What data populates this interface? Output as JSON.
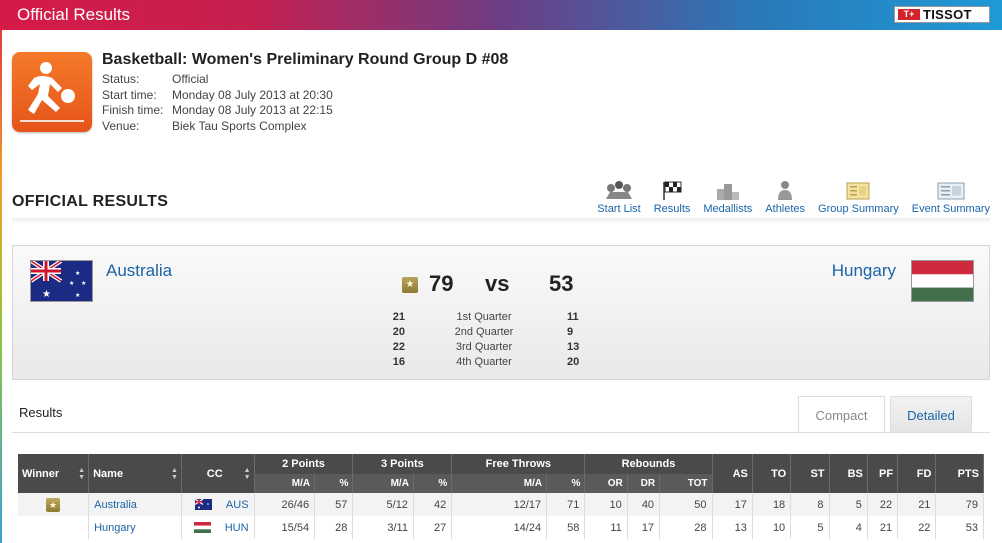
{
  "banner": {
    "title": "Official Results",
    "sponsor": "TISSOT",
    "sponsor_mark": "T+"
  },
  "event": {
    "title": "Basketball: Women's Preliminary Round Group D #08",
    "meta": [
      {
        "label": "Status:",
        "value": "Official"
      },
      {
        "label": "Start time:",
        "value": "Monday 08 July 2013 at 20:30"
      },
      {
        "label": "Finish time:",
        "value": "Monday 08 July 2013 at 22:15"
      },
      {
        "label": "Venue:",
        "value": "Biek Tau Sports Complex"
      }
    ]
  },
  "section": {
    "title": "OFFICIAL RESULTS",
    "nav": [
      {
        "label": "Start List",
        "icon": "start-list-icon"
      },
      {
        "label": "Results",
        "icon": "checkered-flag-icon"
      },
      {
        "label": "Medallists",
        "icon": "podium-icon"
      },
      {
        "label": "Athletes",
        "icon": "athlete-icon"
      },
      {
        "label": "Group Summary",
        "icon": "group-summary-icon"
      },
      {
        "label": "Event Summary",
        "icon": "event-summary-icon"
      }
    ]
  },
  "match": {
    "home": {
      "name": "Australia",
      "score": "79"
    },
    "away": {
      "name": "Hungary",
      "score": "53"
    },
    "vs": "vs",
    "quarters": [
      {
        "home": "21",
        "name": "1st Quarter",
        "away": "11"
      },
      {
        "home": "20",
        "name": "2nd Quarter",
        "away": "9"
      },
      {
        "home": "22",
        "name": "3rd Quarter",
        "away": "13"
      },
      {
        "home": "16",
        "name": "4th Quarter",
        "away": "20"
      }
    ]
  },
  "results": {
    "label": "Results",
    "tabs": {
      "compact": "Compact",
      "detailed": "Detailed"
    },
    "headers": {
      "winner": "Winner",
      "name": "Name",
      "cc": "CC",
      "two_points": "2 Points",
      "three_points": "3 Points",
      "free_throws": "Free Throws",
      "rebounds": "Rebounds",
      "ma": "M/A",
      "pct": "%",
      "or": "OR",
      "dr": "DR",
      "tot": "TOT",
      "as": "AS",
      "to": "TO",
      "st": "ST",
      "bs": "BS",
      "pf": "PF",
      "fd": "FD",
      "pts": "PTS"
    },
    "rows": [
      {
        "winner": true,
        "name": "Australia",
        "cc": "AUS",
        "p2_ma": "26/46",
        "p2_pct": "57",
        "p3_ma": "5/12",
        "p3_pct": "42",
        "ft_ma": "12/17",
        "ft_pct": "71",
        "or": "10",
        "dr": "40",
        "tot": "50",
        "as": "17",
        "to": "18",
        "st": "8",
        "bs": "5",
        "pf": "22",
        "fd": "21",
        "pts": "79"
      },
      {
        "winner": false,
        "name": "Hungary",
        "cc": "HUN",
        "p2_ma": "15/54",
        "p2_pct": "28",
        "p3_ma": "3/11",
        "p3_pct": "27",
        "ft_ma": "14/24",
        "ft_pct": "58",
        "or": "11",
        "dr": "17",
        "tot": "28",
        "as": "13",
        "to": "10",
        "st": "5",
        "bs": "4",
        "pf": "21",
        "fd": "22",
        "pts": "53"
      }
    ]
  },
  "colors": {
    "link": "#1a64a8",
    "header_bg": "#4a4a4a",
    "sport_icon": "#f47a2a"
  }
}
